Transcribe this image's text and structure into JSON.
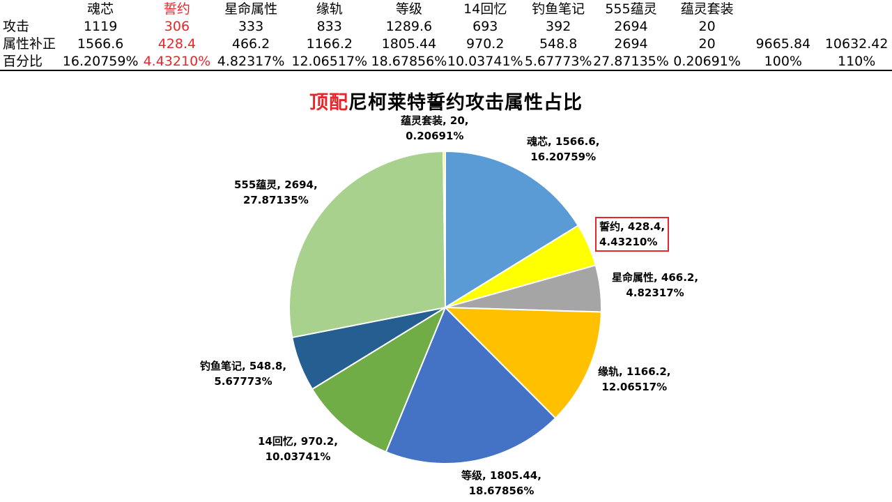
{
  "table": {
    "headers": [
      "魂芯",
      "誓约",
      "星命属性",
      "缘轨",
      "等级",
      "14回忆",
      "钓鱼笔记",
      "555蕴灵",
      "蕴灵套装"
    ],
    "rows": [
      {
        "label": "攻击",
        "values": [
          "1119",
          "306",
          "333",
          "833",
          "1289.6",
          "693",
          "392",
          "2694",
          "20"
        ],
        "extra": [
          "",
          ""
        ]
      },
      {
        "label": "属性补正",
        "values": [
          "1566.6",
          "428.4",
          "466.2",
          "1166.2",
          "1805.44",
          "970.2",
          "548.8",
          "2694",
          "20"
        ],
        "extra": [
          "9665.84",
          "10632.42"
        ]
      },
      {
        "label": "百分比",
        "values": [
          "16.20759%",
          "4.43210%",
          "4.82317%",
          "12.06517%",
          "18.67856%",
          "10.03741%",
          "5.67773%",
          "27.87135%",
          "0.20691%"
        ],
        "extra": [
          "100%",
          "110%"
        ]
      }
    ]
  },
  "chart_data": {
    "type": "pie",
    "title_highlight": "顶配",
    "title_rest": "尼柯莱特誓约攻击属性占比",
    "slices": [
      {
        "name": "魂芯",
        "value": 1566.6,
        "percent": "16.20759%",
        "color": "#5b9bd5",
        "label_line1": "魂芯, 1566.6,",
        "label_line2": "16.20759%"
      },
      {
        "name": "誓约",
        "value": 428.4,
        "percent": "4.43210%",
        "color": "#ffff00",
        "label_line1": "誓约, 428.4,",
        "label_line2": "4.43210%",
        "highlight": true
      },
      {
        "name": "星命属性",
        "value": 466.2,
        "percent": "4.82317%",
        "color": "#a5a5a5",
        "label_line1": "星命属性, 466.2,",
        "label_line2": "4.82317%"
      },
      {
        "name": "缘轨",
        "value": 1166.2,
        "percent": "12.06517%",
        "color": "#ffc000",
        "label_line1": "缘轨, 1166.2,",
        "label_line2": "12.06517%"
      },
      {
        "name": "等级",
        "value": 1805.44,
        "percent": "18.67856%",
        "color": "#4472c4",
        "label_line1": "等级, 1805.44,",
        "label_line2": "18.67856%"
      },
      {
        "name": "14回忆",
        "value": 970.2,
        "percent": "10.03741%",
        "color": "#70ad47",
        "label_line1": "14回忆, 970.2,",
        "label_line2": "10.03741%"
      },
      {
        "name": "钓鱼笔记",
        "value": 548.8,
        "percent": "5.67773%",
        "color": "#255e91",
        "label_line1": "钓鱼笔记, 548.8,",
        "label_line2": "5.67773%"
      },
      {
        "name": "555蕴灵",
        "value": 2694,
        "percent": "27.87135%",
        "color": "#a9d18e",
        "label_line1": "555蕴灵, 2694,",
        "label_line2": "27.87135%"
      },
      {
        "name": "蕴灵套装",
        "value": 20,
        "percent": "0.20691%",
        "color": "#ffff00",
        "label_line1": "蕴灵套装, 20,",
        "label_line2": "0.20691%"
      }
    ]
  }
}
